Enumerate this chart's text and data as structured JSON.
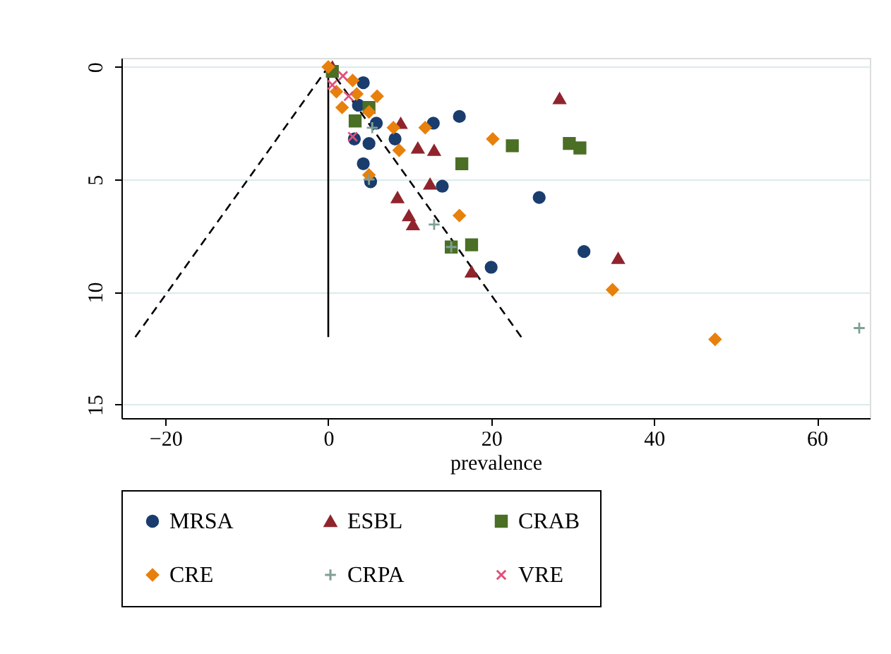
{
  "chart_data": {
    "type": "scatter",
    "xlabel": "prevalence",
    "xlim": [
      -25.4,
      66.5
    ],
    "ylim": [
      15.6,
      -0.4
    ],
    "xticks": [
      -20,
      0,
      20,
      40,
      60
    ],
    "yticks": [
      0,
      5,
      10,
      15
    ],
    "grid": "y",
    "legend": "bottom",
    "series": [
      {
        "type": "line",
        "color": "#000000",
        "line_style": "dashed",
        "marker": "none",
        "x": [
          -23.7,
          0
        ],
        "values": [
          12,
          0
        ]
      },
      {
        "type": "line",
        "color": "#000000",
        "line_style": "dashed",
        "marker": "none",
        "x": [
          23.7,
          0
        ],
        "values": [
          12,
          0
        ]
      },
      {
        "type": "line",
        "color": "#000000",
        "line_style": "solid",
        "marker": "none",
        "x": [
          0,
          0
        ],
        "values": [
          0,
          12
        ]
      },
      {
        "name": "MRSA",
        "color": "#1a3d6e",
        "marker": "circle",
        "x": [
          4.3,
          5.9,
          8.2,
          3.2,
          5.0,
          4.3,
          5.2,
          12.9,
          16.1,
          14.0,
          20.0,
          25.9,
          31.4,
          3.7
        ],
        "values": [
          0.7,
          2.5,
          3.2,
          3.2,
          3.4,
          4.3,
          5.1,
          2.5,
          2.2,
          5.3,
          8.9,
          5.8,
          8.2,
          1.7
        ]
      },
      {
        "name": "ESBL",
        "color": "#90242d",
        "marker": "triangle",
        "x": [
          0.5,
          8.9,
          11.0,
          13.0,
          12.5,
          8.5,
          9.9,
          10.4,
          17.6,
          28.4,
          35.6
        ],
        "values": [
          0,
          2.5,
          3.6,
          3.7,
          5.2,
          5.8,
          6.6,
          7.0,
          9.1,
          1.4,
          8.5
        ]
      },
      {
        "name": "CRAB",
        "color": "#4a6f25",
        "marker": "square",
        "x": [
          0.5,
          3.3,
          5.0,
          16.4,
          22.6,
          15.1,
          17.6,
          29.6,
          30.9
        ],
        "values": [
          0.2,
          2.4,
          1.8,
          4.3,
          3.5,
          8.0,
          7.9,
          3.4,
          3.6
        ]
      },
      {
        "name": "CRE",
        "color": "#e8800c",
        "marker": "diamond",
        "x": [
          0,
          1.0,
          1.7,
          3.0,
          3.5,
          6.0,
          5.0,
          8.0,
          11.9,
          8.7,
          5.0,
          20.2,
          16.1,
          34.9,
          47.5
        ],
        "values": [
          0,
          1.1,
          1.8,
          0.6,
          1.2,
          1.3,
          2.0,
          2.7,
          2.7,
          3.7,
          4.8,
          3.2,
          6.6,
          9.9,
          12.1
        ]
      },
      {
        "name": "CRPA",
        "color": "#7f9f97",
        "marker": "cross",
        "x": [
          5.4,
          13.0,
          65.2,
          5.0,
          15.1
        ],
        "values": [
          2.7,
          7.0,
          11.6,
          5.0,
          8.0
        ]
      },
      {
        "name": "VRE",
        "color": "#e0507a",
        "marker": "x",
        "x": [
          1.8,
          0.5,
          2.5,
          3.0
        ],
        "values": [
          0.4,
          0.8,
          1.3,
          3.1
        ]
      }
    ]
  }
}
